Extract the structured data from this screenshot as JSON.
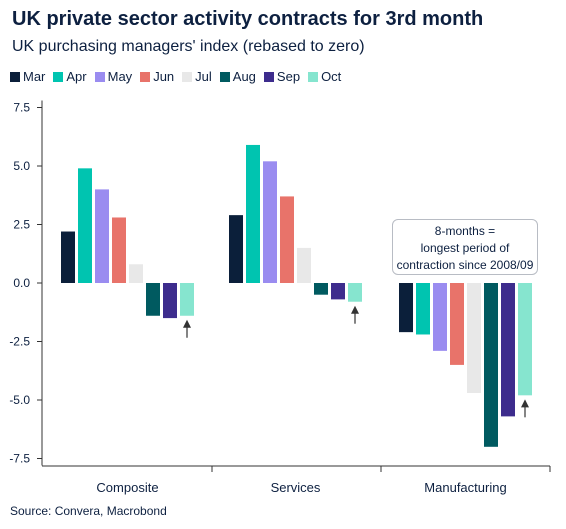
{
  "title": "UK private sector activity contracts for 3rd month",
  "subtitle": "UK purchasing managers' index (rebased to zero)",
  "source": "Source: Convera, Macrobond",
  "callout": {
    "lines": [
      "8-months =",
      "longest period of",
      "contraction since 2008/09"
    ]
  },
  "chart_data": {
    "type": "bar",
    "categories": [
      "Composite",
      "Services",
      "Manufacturing"
    ],
    "series": [
      {
        "name": "Mar",
        "color": "#0b1f3a",
        "values": [
          2.2,
          2.9,
          -2.1
        ]
      },
      {
        "name": "Apr",
        "color": "#00c4b0",
        "values": [
          4.9,
          5.9,
          -2.2
        ]
      },
      {
        "name": "May",
        "color": "#9a8cf0",
        "values": [
          4.0,
          5.2,
          -2.9
        ]
      },
      {
        "name": "Jun",
        "color": "#e8736a",
        "values": [
          2.8,
          3.7,
          -3.5
        ]
      },
      {
        "name": "Jul",
        "color": "#e8e8e8",
        "values": [
          0.8,
          1.5,
          -4.7
        ]
      },
      {
        "name": "Aug",
        "color": "#005a60",
        "values": [
          -1.4,
          -0.5,
          -7.0
        ]
      },
      {
        "name": "Sep",
        "color": "#3d2c8d",
        "values": [
          -1.5,
          -0.7,
          -5.7
        ]
      },
      {
        "name": "Oct",
        "color": "#86e5cf",
        "values": [
          -1.4,
          -0.8,
          -4.8
        ]
      }
    ],
    "ylim": [
      -7.8,
      7.8
    ],
    "yticks": [
      7.5,
      5.0,
      2.5,
      0.0,
      -2.5,
      -5.0,
      -7.5
    ],
    "ytick_labels": [
      "7.5",
      "5.0",
      "2.5",
      "0.0",
      "-2.5",
      "-5.0",
      "-7.5"
    ],
    "grid": false,
    "legend_position": "top-left"
  }
}
